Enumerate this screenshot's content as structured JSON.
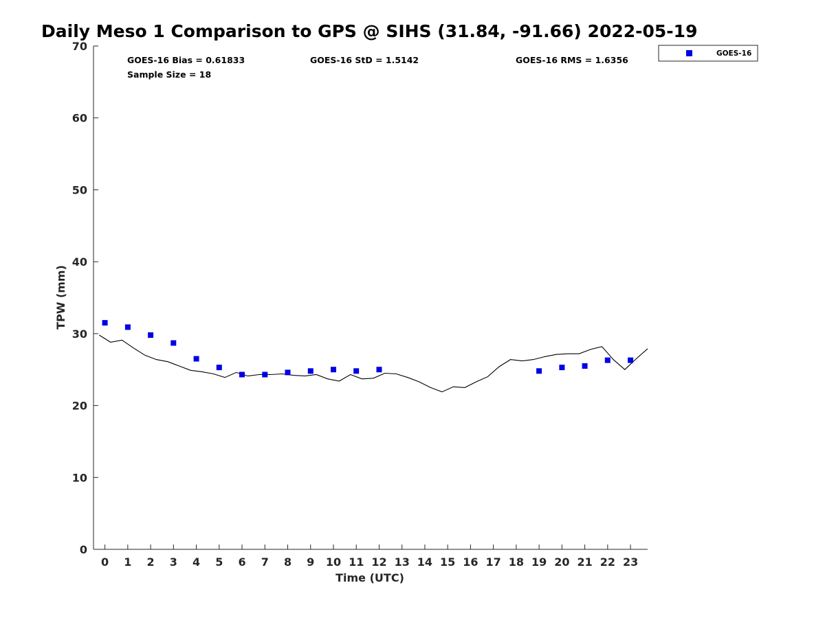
{
  "chart_data": {
    "type": "scatter",
    "title": "Daily Meso 1 Comparison to GPS @ SIHS (31.84, -91.66) 2022-05-19",
    "xlabel": "Time (UTC)",
    "ylabel": "TPW (mm)",
    "xlim": [
      -0.5,
      23.75
    ],
    "ylim": [
      0,
      70
    ],
    "x_ticks": [
      "0",
      "1",
      "2",
      "3",
      "4",
      "5",
      "6",
      "7",
      "8",
      "9",
      "10",
      "11",
      "12",
      "13",
      "14",
      "15",
      "16",
      "17",
      "18",
      "19",
      "20",
      "21",
      "22",
      "23"
    ],
    "y_ticks": [
      "0",
      "10",
      "20",
      "30",
      "40",
      "50",
      "60",
      "70"
    ],
    "grid": false,
    "legend_position": "top-right (outside plot)",
    "stats": {
      "bias": "GOES-16 Bias = 0.61833",
      "std": "GOES-16 StD = 1.5142",
      "rms": "GOES-16 RMS = 1.6356",
      "sample": "Sample Size = 18"
    },
    "series": [
      {
        "name": "GOES-16",
        "style": "marker",
        "color": "#0000e6",
        "points": [
          [
            0,
            31.5
          ],
          [
            1,
            30.9
          ],
          [
            2,
            29.8
          ],
          [
            3,
            28.7
          ],
          [
            4,
            26.5
          ],
          [
            5,
            25.3
          ],
          [
            6,
            24.3
          ],
          [
            7,
            24.3
          ],
          [
            8,
            24.6
          ],
          [
            9,
            24.8
          ],
          [
            10,
            25.0
          ],
          [
            11,
            24.8
          ],
          [
            12,
            25.0
          ],
          [
            19,
            24.8
          ],
          [
            20,
            25.3
          ],
          [
            21,
            25.5
          ],
          [
            22,
            26.3
          ],
          [
            23,
            26.3
          ]
        ]
      },
      {
        "name": "",
        "style": "line",
        "color": "#000000",
        "points": [
          [
            -0.25,
            29.8
          ],
          [
            0.25,
            28.8
          ],
          [
            0.75,
            29.1
          ],
          [
            1.25,
            28.0
          ],
          [
            1.75,
            27.0
          ],
          [
            2.25,
            26.4
          ],
          [
            2.75,
            26.1
          ],
          [
            3.25,
            25.5
          ],
          [
            3.75,
            24.9
          ],
          [
            4.25,
            24.7
          ],
          [
            4.75,
            24.4
          ],
          [
            5.25,
            23.9
          ],
          [
            5.75,
            24.6
          ],
          [
            6.25,
            24.1
          ],
          [
            6.75,
            24.3
          ],
          [
            7.25,
            24.3
          ],
          [
            7.75,
            24.4
          ],
          [
            8.25,
            24.2
          ],
          [
            8.75,
            24.1
          ],
          [
            9.25,
            24.3
          ],
          [
            9.75,
            23.7
          ],
          [
            10.25,
            23.4
          ],
          [
            10.75,
            24.3
          ],
          [
            11.25,
            23.7
          ],
          [
            11.75,
            23.8
          ],
          [
            12.25,
            24.5
          ],
          [
            12.75,
            24.4
          ],
          [
            13.25,
            23.9
          ],
          [
            13.75,
            23.3
          ],
          [
            14.25,
            22.5
          ],
          [
            14.75,
            21.9
          ],
          [
            15.25,
            22.6
          ],
          [
            15.75,
            22.5
          ],
          [
            16.25,
            23.3
          ],
          [
            16.75,
            24.0
          ],
          [
            17.25,
            25.4
          ],
          [
            17.75,
            26.4
          ],
          [
            18.25,
            26.2
          ],
          [
            18.75,
            26.4
          ],
          [
            19.25,
            26.8
          ],
          [
            19.75,
            27.1
          ],
          [
            20.25,
            27.2
          ],
          [
            20.75,
            27.2
          ],
          [
            21.25,
            27.8
          ],
          [
            21.75,
            28.2
          ],
          [
            22.25,
            26.4
          ],
          [
            22.75,
            25.0
          ],
          [
            23.25,
            26.5
          ],
          [
            23.75,
            27.9
          ]
        ]
      }
    ]
  }
}
